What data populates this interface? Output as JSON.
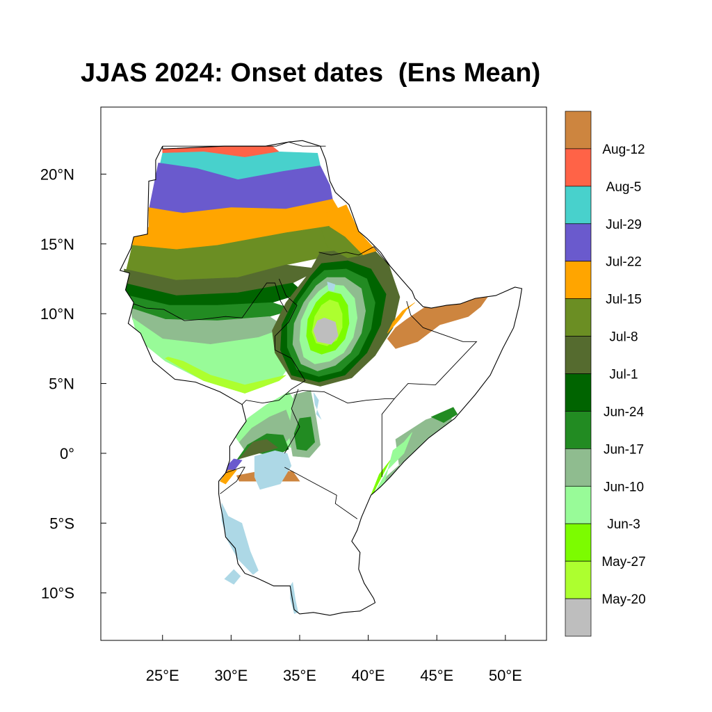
{
  "title": "JJAS 2024: Onset dates  (Ens Mean)",
  "map": {
    "lon_range": [
      20.5,
      53
    ],
    "lat_range": [
      -13.4,
      24.8
    ],
    "x_ticks": [
      {
        "value": 25,
        "label": "25°E"
      },
      {
        "value": 30,
        "label": "30°E"
      },
      {
        "value": 35,
        "label": "35°E"
      },
      {
        "value": 40,
        "label": "40°E"
      },
      {
        "value": 45,
        "label": "45°E"
      },
      {
        "value": 50,
        "label": "50°E"
      }
    ],
    "y_ticks": [
      {
        "value": 20,
        "label": "20°N"
      },
      {
        "value": 15,
        "label": "15°N"
      },
      {
        "value": 10,
        "label": "10°N"
      },
      {
        "value": 5,
        "label": "5°N"
      },
      {
        "value": 0,
        "label": "0°"
      },
      {
        "value": -5,
        "label": "5°S"
      },
      {
        "value": -10,
        "label": "10°S"
      }
    ],
    "lake_color": "#add8e6"
  },
  "legend": {
    "colors": [
      "#cd853f",
      "#ff6347",
      "#48d1cc",
      "#6a5acd",
      "#ffa500",
      "#6b8e23",
      "#556b2f",
      "#006400",
      "#228b22",
      "#8fbc8f",
      "#98fb98",
      "#7cfc00",
      "#adff2f",
      "#bebebe"
    ],
    "labels": [
      "Aug-12",
      "Aug-5",
      "Jul-29",
      "Jul-22",
      "Jul-15",
      "Jul-8",
      "Jul-1",
      "Jun-24",
      "Jun-17",
      "Jun-10",
      "Jun-3",
      "May-27",
      "May-20"
    ]
  }
}
